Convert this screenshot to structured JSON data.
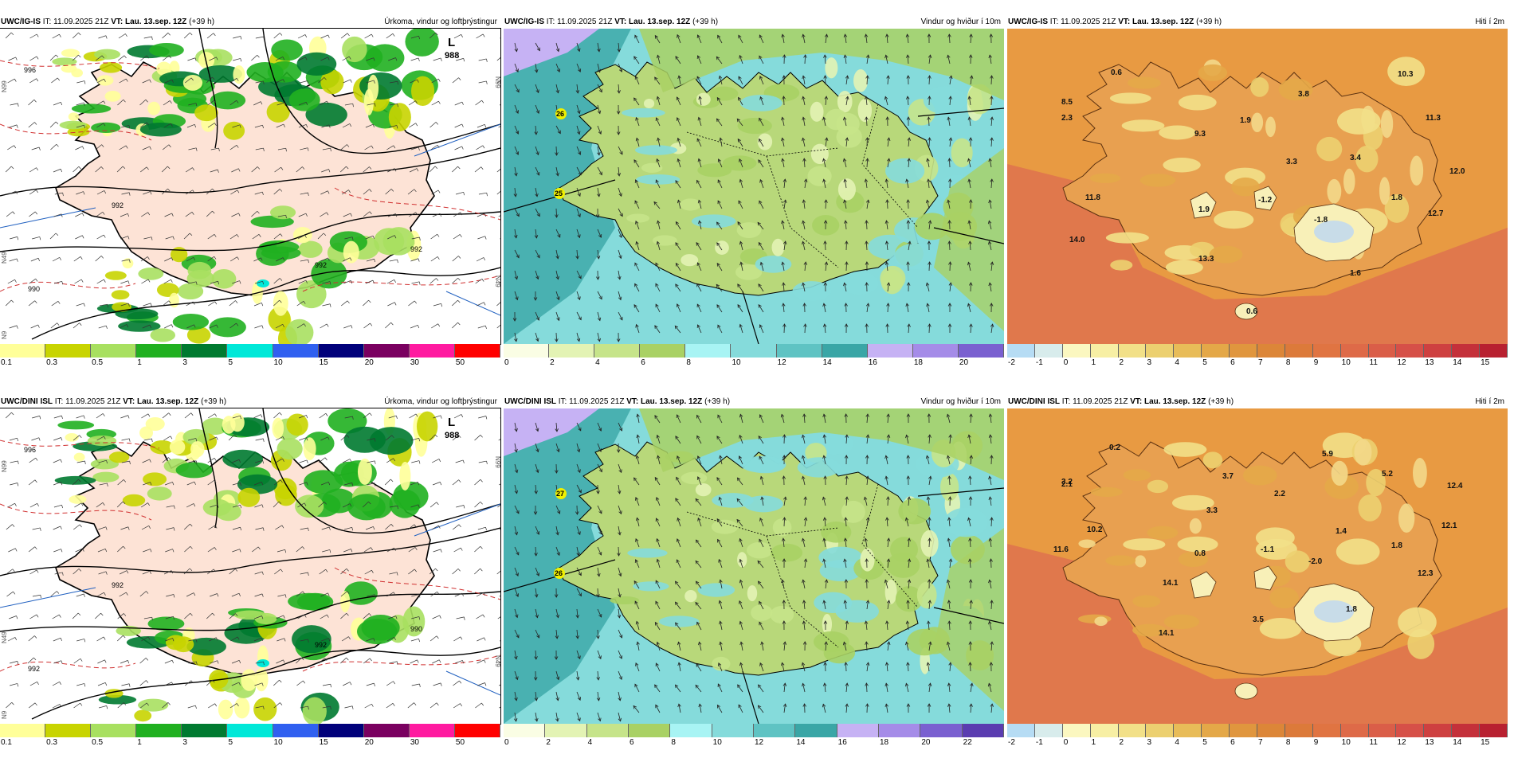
{
  "rows": [
    {
      "id": "igis",
      "panels": [
        {
          "model": "UWC/IG-IS",
          "it_label": "IT:",
          "it": "11.09.2025 21Z",
          "vt_label": "VT:",
          "vt": "Lau. 13.sep. 12Z",
          "lead": "(+39 h)",
          "title": "Úrkoma, vindur og loftþrýstingur",
          "type": "precip",
          "low_marker": "L",
          "low_value": "988",
          "isobar_labels": [
            "996",
            "992",
            "990",
            "992",
            "992"
          ],
          "lat_labels": [
            "N99",
            "N99",
            "N49",
            "N49",
            "N9"
          ]
        },
        {
          "model": "UWC/IG-IS",
          "it_label": "IT:",
          "it": "11.09.2025 21Z",
          "vt_label": "VT:",
          "vt": "Lau. 13.sep. 12Z",
          "lead": "(+39 h)",
          "title": "Vindur og hviður í 10m",
          "type": "wind",
          "gust_values": [
            "26",
            "25"
          ]
        },
        {
          "model": "UWC/IG-IS",
          "it_label": "IT:",
          "it": "11.09.2025 21Z",
          "vt_label": "VT:",
          "vt": "Lau. 13.sep. 12Z",
          "lead": "(+39 h)",
          "title": "Hiti í 2m",
          "type": "temp",
          "values": [
            "0.6",
            "10.3",
            "8.5",
            "3.8",
            "2.3",
            "1.9",
            "11.3",
            "9.3",
            "3.3",
            "3.4",
            "12.0",
            "11.8",
            "1.9",
            "-1.2",
            "-1.8",
            "1.8",
            "12.7",
            "14.0",
            "13.3",
            "1.6",
            "0.6"
          ]
        }
      ]
    },
    {
      "id": "dini",
      "panels": [
        {
          "model": "UWC/DINI ISL",
          "it_label": "IT:",
          "it": "11.09.2025 21Z",
          "vt_label": "VT:",
          "vt": "Lau. 13.sep. 12Z",
          "lead": "(+39 h)",
          "title": "Úrkoma, vindur og loftþrýstingur",
          "type": "precip",
          "low_marker": "L",
          "low_value": "988",
          "isobar_labels": [
            "996",
            "992",
            "992",
            "990",
            "992"
          ],
          "lat_labels": [
            "N99",
            "N99",
            "N49",
            "N49",
            "N9"
          ]
        },
        {
          "model": "UWC/DINI ISL",
          "it_label": "IT:",
          "it": "11.09.2025 21Z",
          "vt_label": "VT:",
          "vt": "Lau. 13.sep. 12Z",
          "lead": "(+39 h)",
          "title": "Vindur og hviður í 10m",
          "type": "wind",
          "gust_values": [
            "27",
            "26"
          ]
        },
        {
          "model": "UWC/DINI ISL",
          "it_label": "IT:",
          "it": "11.09.2025 21Z",
          "vt_label": "VT:",
          "vt": "Lau. 13.sep. 12Z",
          "lead": "(+39 h)",
          "title": "Hiti í 2m",
          "type": "temp",
          "values": [
            "0.2",
            "5.9",
            "3.2",
            "3.7",
            "2.1",
            "5.2",
            "12.4",
            "2.2",
            "3.3",
            "10.2",
            "1.4",
            "12.1",
            "11.6",
            "0.8",
            "-1.1",
            "1.8",
            "-2.0",
            "12.3",
            "14.1",
            "1.8",
            "3.5",
            "14.1"
          ]
        }
      ]
    }
  ],
  "scales": {
    "precip": {
      "ticks": [
        "0.1",
        "0.3",
        "0.5",
        "1",
        "3",
        "5",
        "10",
        "15",
        "20",
        "30",
        "50"
      ],
      "colors": [
        "#ffff99",
        "#c8d400",
        "#a8e060",
        "#20b020",
        "#007a30",
        "#00e8d8",
        "#3060f0",
        "#00007a",
        "#7a0060",
        "#ff1aa0",
        "#ff0000"
      ]
    },
    "wind_top": {
      "ticks": [
        "0",
        "2",
        "4",
        "6",
        "8",
        "10",
        "12",
        "14",
        "16",
        "18",
        "20"
      ],
      "colors": [
        "#fafde4",
        "#e3f3b4",
        "#c6e48a",
        "#a9d164",
        "#a8f4f4",
        "#85dbdb",
        "#5fc3c3",
        "#3aa6a6",
        "#c6b2f4",
        "#a58ce8",
        "#7a60d0"
      ]
    },
    "wind_bottom": {
      "ticks": [
        "0",
        "2",
        "4",
        "6",
        "8",
        "10",
        "12",
        "14",
        "16",
        "18",
        "20",
        "22"
      ],
      "colors": [
        "#fafde4",
        "#e3f3b4",
        "#c6e48a",
        "#a9d164",
        "#a8f4f4",
        "#85dbdb",
        "#5fc3c3",
        "#3aa6a6",
        "#c6b2f4",
        "#a58ce8",
        "#7a60d0",
        "#5a3cb0"
      ]
    },
    "temp": {
      "ticks": [
        "-2",
        "-1",
        "0",
        "1",
        "2",
        "3",
        "4",
        "5",
        "6",
        "7",
        "8",
        "9",
        "10",
        "11",
        "12",
        "13",
        "14",
        "15"
      ],
      "colors": [
        "#b6dcf4",
        "#d8ecec",
        "#fbf7c0",
        "#f7efa4",
        "#f2e088",
        "#ecd070",
        "#e8bc58",
        "#e4a848",
        "#e0963e",
        "#dc8638",
        "#dc7a3a",
        "#e07442",
        "#de6a48",
        "#da5e48",
        "#d65048",
        "#ce4040",
        "#c4303a",
        "#b82030"
      ]
    }
  },
  "palette": {
    "land_precip": "#fde3d6",
    "sea_precip": "#ffffff",
    "temp_sea": "#e0784c",
    "temp_land": "#e89a42",
    "temp_high": "#f3d88a",
    "temp_glacier": "#f8f0b8",
    "temp_ice": "#c8dce8",
    "wind_sea_dark": "#3aa6a6",
    "wind_sea_light": "#85dbdb",
    "wind_land": "#b8d87a",
    "wind_land_light": "#e3f3b4",
    "wind_purple": "#c6b2f4"
  }
}
